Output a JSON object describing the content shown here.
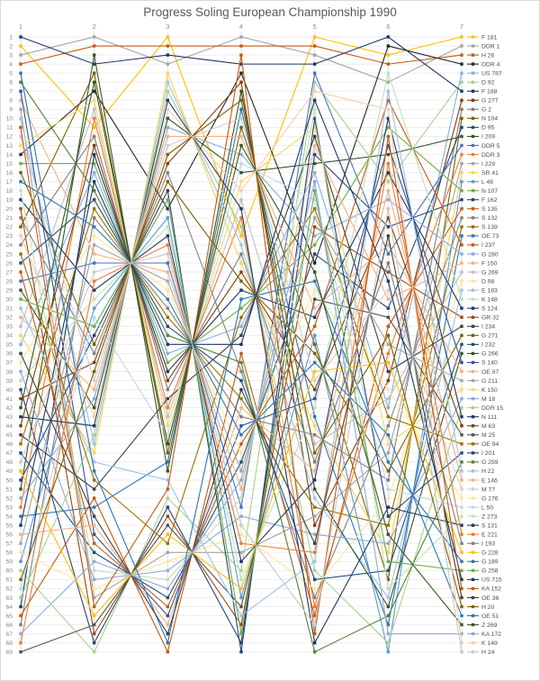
{
  "title": "Progress Soling European Championship 1990",
  "chart_data": {
    "type": "line",
    "subtype": "bump-rank-progress",
    "title": "Progress Soling European Championship 1990",
    "x": [
      "1",
      "2",
      "3",
      "4",
      "5",
      "6",
      "7"
    ],
    "x_axis_position": "top",
    "rank_axis": {
      "min": 1,
      "max": 69,
      "best_at_top": true
    },
    "grid": true,
    "legend_position": "right",
    "series": [
      {
        "name": "F 181",
        "color": "#FFC000",
        "positions": [
          2,
          11,
          1,
          23,
          1,
          3,
          1
        ]
      },
      {
        "name": "DDR 1",
        "color": "#A5A5A5",
        "positions": [
          3,
          1,
          4,
          1,
          3,
          6,
          2
        ]
      },
      {
        "name": "H 26",
        "color": "#C55A11",
        "positions": [
          4,
          2,
          2,
          2,
          2,
          4,
          3
        ]
      },
      {
        "name": "DDR 4",
        "color": "#262626",
        "positions": [
          14,
          7,
          20,
          5,
          26,
          2,
          4
        ]
      },
      {
        "name": "US 787",
        "color": "#7FB2E5",
        "positions": [
          35,
          16,
          36,
          33,
          16,
          42,
          5
        ]
      },
      {
        "name": "D 92",
        "color": "#A9D18E",
        "positions": [
          60,
          69,
          52,
          60,
          6,
          17,
          6
        ]
      },
      {
        "name": "F 188",
        "color": "#1F3864",
        "positions": [
          1,
          4,
          3,
          4,
          4,
          1,
          7
        ]
      },
      {
        "name": "G 277",
        "color": "#843C0C",
        "positions": [
          41,
          37,
          15,
          6,
          55,
          39,
          8
        ]
      },
      {
        "name": "G 2",
        "color": "#7F7F7F",
        "positions": [
          66,
          21,
          31,
          43,
          45,
          50,
          9
        ]
      },
      {
        "name": "N 104",
        "color": "#7F6000",
        "positions": [
          22,
          5,
          47,
          11,
          35,
          61,
          10
        ]
      },
      {
        "name": "D 95",
        "color": "#1F4E79",
        "positions": [
          47,
          58,
          63,
          48,
          25,
          31,
          11
        ]
      },
      {
        "name": "I 209",
        "color": "#375623",
        "positions": [
          29,
          42,
          10,
          16,
          15,
          14,
          12
        ]
      },
      {
        "name": "DDR 5",
        "color": "#4472C4",
        "positions": [
          28,
          26,
          26,
          53,
          5,
          25,
          13
        ]
      },
      {
        "name": "DDR 3",
        "color": "#ED7D31",
        "positions": [
          53,
          10,
          42,
          21,
          64,
          36,
          14
        ]
      },
      {
        "name": "I 229",
        "color": "#A5A5A5",
        "positions": [
          9,
          63,
          58,
          58,
          54,
          47,
          15
        ]
      },
      {
        "name": "SR 41",
        "color": "#FFD34D",
        "positions": [
          34,
          47,
          5,
          26,
          44,
          58,
          16
        ]
      },
      {
        "name": "L 48",
        "color": "#5B9BD5",
        "positions": [
          59,
          31,
          21,
          63,
          34,
          69,
          17
        ]
      },
      {
        "name": "N 107",
        "color": "#70AD47",
        "positions": [
          15,
          15,
          37,
          31,
          24,
          11,
          18
        ]
      },
      {
        "name": "F 162",
        "color": "#264478",
        "positions": [
          40,
          68,
          53,
          68,
          14,
          22,
          19
        ]
      },
      {
        "name": "S 135",
        "color": "#C55A11",
        "positions": [
          65,
          52,
          69,
          36,
          65,
          33,
          20
        ]
      },
      {
        "name": "S 132",
        "color": "#848484",
        "positions": [
          21,
          36,
          16,
          38,
          63,
          44,
          21
        ]
      },
      {
        "name": "S 139",
        "color": "#997300",
        "positions": [
          46,
          20,
          32,
          41,
          53,
          55,
          22
        ]
      },
      {
        "name": "OE 73",
        "color": "#2E75B6",
        "positions": [
          54,
          53,
          48,
          9,
          43,
          66,
          23
        ]
      },
      {
        "name": "I 237",
        "color": "#C55A11",
        "positions": [
          27,
          57,
          64,
          46,
          33,
          8,
          24
        ]
      },
      {
        "name": "G 280",
        "color": "#8EAADB",
        "positions": [
          52,
          41,
          11,
          14,
          23,
          19,
          25
        ]
      },
      {
        "name": "F 150",
        "color": "#F4B183",
        "positions": [
          8,
          25,
          27,
          51,
          13,
          30,
          26
        ]
      },
      {
        "name": "G 269",
        "color": "#BFBFBF",
        "positions": [
          33,
          9,
          43,
          19,
          46,
          41,
          27
        ]
      },
      {
        "name": "D 98",
        "color": "#FFE699",
        "positions": [
          58,
          62,
          59,
          56,
          62,
          52,
          28
        ]
      },
      {
        "name": "E 183",
        "color": "#9DC3E6",
        "positions": [
          10,
          46,
          6,
          24,
          52,
          63,
          29
        ]
      },
      {
        "name": "K 148",
        "color": "#C5E0B4",
        "positions": [
          39,
          30,
          22,
          61,
          42,
          5,
          30
        ]
      },
      {
        "name": "S 124",
        "color": "#1F3864",
        "positions": [
          64,
          14,
          38,
          29,
          32,
          16,
          31
        ]
      },
      {
        "name": "GR 32",
        "color": "#9E480E",
        "positions": [
          20,
          67,
          54,
          66,
          22,
          27,
          32
        ]
      },
      {
        "name": "I 234",
        "color": "#404040",
        "positions": [
          45,
          51,
          41,
          34,
          12,
          38,
          33
        ]
      },
      {
        "name": "G 271",
        "color": "#7F6000",
        "positions": [
          16,
          35,
          17,
          28,
          36,
          49,
          34
        ]
      },
      {
        "name": "I 232",
        "color": "#1F4E79",
        "positions": [
          26,
          19,
          33,
          39,
          61,
          60,
          35
        ]
      },
      {
        "name": "G 266",
        "color": "#375623",
        "positions": [
          51,
          3,
          49,
          7,
          51,
          64,
          36
        ]
      },
      {
        "name": "S 140",
        "color": "#2F5597",
        "positions": [
          7,
          56,
          65,
          44,
          41,
          13,
          37
        ]
      },
      {
        "name": "OE 97",
        "color": "#F4B183",
        "positions": [
          32,
          40,
          12,
          12,
          31,
          24,
          38
        ]
      },
      {
        "name": "G 211",
        "color": "#A5A5A5",
        "positions": [
          57,
          24,
          28,
          49,
          21,
          35,
          39
        ]
      },
      {
        "name": "K 150",
        "color": "#FFD966",
        "positions": [
          13,
          8,
          44,
          17,
          11,
          46,
          40
        ]
      },
      {
        "name": "M 18",
        "color": "#8FAADC",
        "positions": [
          38,
          61,
          60,
          54,
          56,
          57,
          41
        ]
      },
      {
        "name": "DDR 15",
        "color": "#A9D18E",
        "positions": [
          63,
          45,
          7,
          22,
          60,
          68,
          42
        ]
      },
      {
        "name": "N 111",
        "color": "#1F3864",
        "positions": [
          19,
          29,
          23,
          59,
          50,
          10,
          43
        ]
      },
      {
        "name": "M 63",
        "color": "#843C0C",
        "positions": [
          44,
          13,
          39,
          27,
          40,
          21,
          44
        ]
      },
      {
        "name": "M 25",
        "color": "#525252",
        "positions": [
          69,
          66,
          55,
          64,
          30,
          32,
          45
        ]
      },
      {
        "name": "OE 94",
        "color": "#997300",
        "positions": [
          25,
          50,
          57,
          32,
          20,
          43,
          46
        ]
      },
      {
        "name": "I 201",
        "color": "#264478",
        "positions": [
          50,
          34,
          18,
          69,
          10,
          54,
          47
        ]
      },
      {
        "name": "G 259",
        "color": "#538135",
        "positions": [
          6,
          18,
          34,
          37,
          69,
          65,
          48
        ]
      },
      {
        "name": "H 22",
        "color": "#9DC3E6",
        "positions": [
          31,
          48,
          50,
          65,
          59,
          7,
          49
        ]
      },
      {
        "name": "E 146",
        "color": "#F4B183",
        "positions": [
          56,
          55,
          66,
          42,
          49,
          18,
          50
        ]
      },
      {
        "name": "M 77",
        "color": "#D0CECE",
        "positions": [
          12,
          39,
          13,
          10,
          39,
          29,
          51
        ]
      },
      {
        "name": "G 276",
        "color": "#FFE699",
        "positions": [
          37,
          23,
          29,
          47,
          29,
          40,
          52
        ]
      },
      {
        "name": "L 50",
        "color": "#BDD7EE",
        "positions": [
          62,
          32,
          45,
          15,
          19,
          51,
          53
        ]
      },
      {
        "name": "Z 273",
        "color": "#C5E0B4",
        "positions": [
          18,
          60,
          61,
          52,
          9,
          62,
          54
        ]
      },
      {
        "name": "S 131",
        "color": "#1F3864",
        "positions": [
          43,
          44,
          8,
          20,
          68,
          53,
          55
        ]
      },
      {
        "name": "E 221",
        "color": "#ED7D31",
        "positions": [
          68,
          28,
          24,
          57,
          58,
          15,
          56
        ]
      },
      {
        "name": "I 193",
        "color": "#7F7F7F",
        "positions": [
          24,
          12,
          40,
          25,
          48,
          26,
          57
        ]
      },
      {
        "name": "G 228",
        "color": "#FFC000",
        "positions": [
          49,
          65,
          56,
          62,
          38,
          37,
          58
        ]
      },
      {
        "name": "G 189",
        "color": "#2E75B6",
        "positions": [
          5,
          49,
          68,
          30,
          28,
          48,
          59
        ]
      },
      {
        "name": "G 258",
        "color": "#70AD47",
        "positions": [
          30,
          33,
          19,
          67,
          18,
          59,
          60
        ]
      },
      {
        "name": "US 715",
        "color": "#1F3864",
        "positions": [
          55,
          17,
          35,
          35,
          8,
          28,
          61
        ]
      },
      {
        "name": "KA 152",
        "color": "#C55A11",
        "positions": [
          11,
          64,
          51,
          3,
          67,
          12,
          62
        ]
      },
      {
        "name": "OE 36",
        "color": "#404040",
        "positions": [
          36,
          54,
          67,
          40,
          57,
          23,
          63
        ]
      },
      {
        "name": "H 20",
        "color": "#7F6000",
        "positions": [
          61,
          38,
          14,
          8,
          47,
          34,
          64
        ]
      },
      {
        "name": "OE 51",
        "color": "#2E75B6",
        "positions": [
          17,
          22,
          30,
          45,
          37,
          45,
          65
        ]
      },
      {
        "name": "Z 269",
        "color": "#375623",
        "positions": [
          42,
          6,
          46,
          13,
          27,
          56,
          66
        ]
      },
      {
        "name": "KA 172",
        "color": "#8FAADC",
        "positions": [
          67,
          59,
          62,
          50,
          17,
          67,
          67
        ]
      },
      {
        "name": "K 149",
        "color": "#F8CBAD",
        "positions": [
          23,
          43,
          9,
          18,
          7,
          9,
          68
        ]
      },
      {
        "name": "H 24",
        "color": "#C9C9C9",
        "positions": [
          48,
          27,
          25,
          55,
          66,
          20,
          69
        ]
      }
    ]
  }
}
